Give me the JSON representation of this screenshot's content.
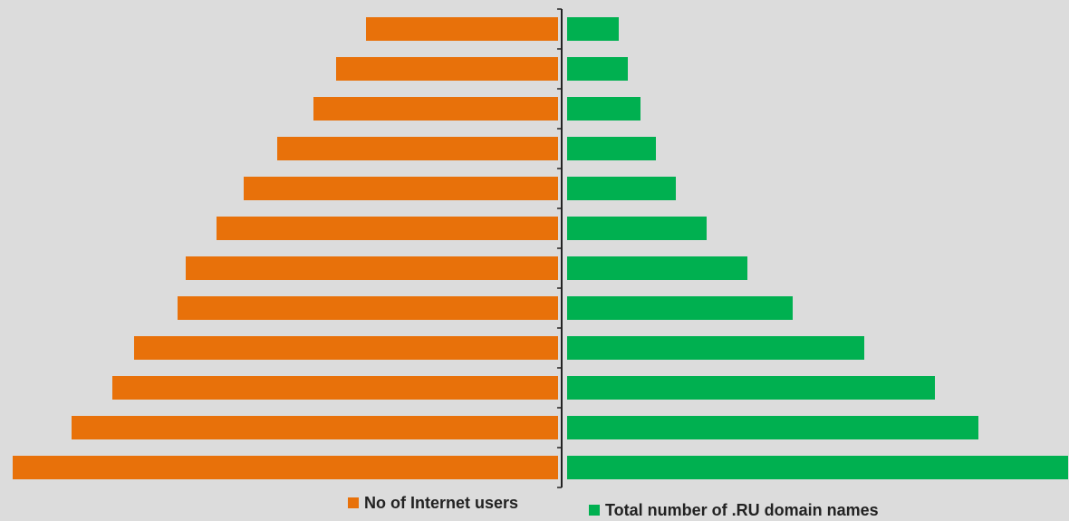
{
  "chart_data": {
    "type": "bar",
    "orientation": "horizontal-butterfly",
    "categories": [
      "",
      "",
      "",
      "",
      "",
      "",
      "",
      "",
      "",
      "",
      "",
      ""
    ],
    "series": [
      {
        "name": "No of Internet users",
        "color": "#e8710a",
        "side": "left",
        "values": [
          2.12,
          2.45,
          2.7,
          3.1,
          3.47,
          3.77,
          4.11,
          4.2,
          4.68,
          4.92,
          5.37,
          6.02
        ]
      },
      {
        "name": "Total number of .RU domain names",
        "color": "#00b050",
        "side": "right",
        "values": [
          0.57,
          0.67,
          0.81,
          0.98,
          1.2,
          1.54,
          1.99,
          2.49,
          3.28,
          4.06,
          4.54,
          5.53
        ]
      }
    ],
    "legend_position": "bottom",
    "grid": false
  },
  "legend": {
    "left_label": "No of Internet users",
    "right_label": "Total number of .RU domain names"
  }
}
